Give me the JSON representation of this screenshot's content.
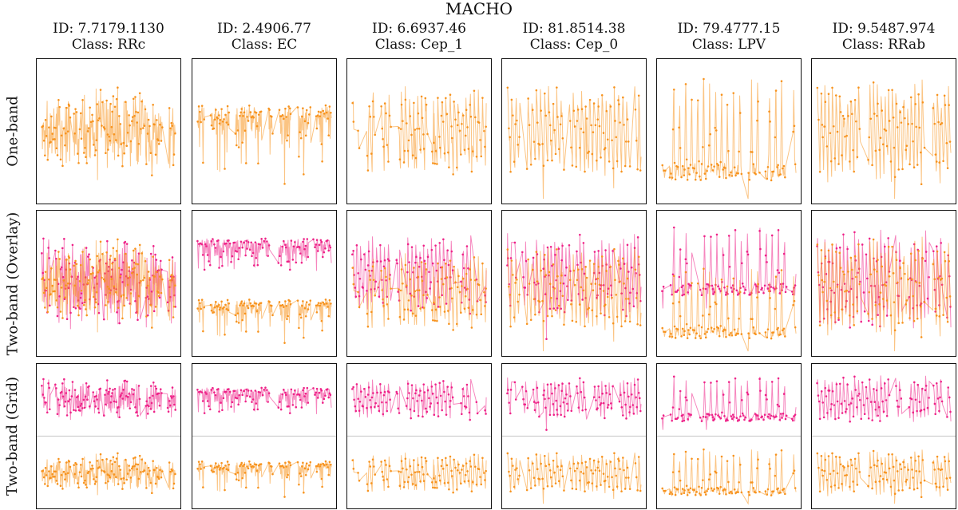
{
  "title": "MACHO",
  "colors": {
    "band1": "#f7931e",
    "band2": "#ee2288",
    "divider": "#cfcfcf"
  },
  "row_labels": [
    "One-band",
    "Two-band (Overlay)",
    "Two-band (Grid)"
  ],
  "columns": [
    {
      "id_text": "ID: 7.7179.1130",
      "class_text": "Class: RRc"
    },
    {
      "id_text": "ID: 2.4906.77",
      "class_text": "Class: EC"
    },
    {
      "id_text": "ID: 6.6937.46",
      "class_text": "Class: Cep_1"
    },
    {
      "id_text": "ID: 81.8514.38",
      "class_text": "Class: Cep_0"
    },
    {
      "id_text": "ID: 79.4777.15",
      "class_text": "Class: LPV"
    },
    {
      "id_text": "ID: 9.5487.974",
      "class_text": "Class: RRab"
    }
  ],
  "chart_data": {
    "type": "line",
    "title": "MACHO",
    "description_rows": [
      "One-band",
      "Two-band (Overlay)",
      "Two-band (Grid)"
    ],
    "series_names": [
      "band 1 (orange)",
      "band 2 (magenta)"
    ],
    "xlabel": "",
    "ylabel": "",
    "grid": false,
    "stars": [
      {
        "id": "7.7179.1130",
        "class": "RRc",
        "pattern": "noise",
        "amplitude": 0.85,
        "cycles": 40,
        "band2_offset": 0.0
      },
      {
        "id": "2.4906.77",
        "class": "EC",
        "pattern": "eclipse",
        "amplitude": 0.7,
        "cycles": 16,
        "band2_offset": 0.5
      },
      {
        "id": "6.6937.46",
        "class": "Cep_1",
        "pattern": "sawtooth",
        "amplitude": 0.75,
        "cycles": 10,
        "band2_offset": 0.15
      },
      {
        "id": "81.8514.38",
        "class": "Cep_0",
        "pattern": "sawtooth",
        "amplitude": 0.8,
        "cycles": 11,
        "band2_offset": 0.1
      },
      {
        "id": "79.4777.15",
        "class": "LPV",
        "pattern": "peaks",
        "amplitude": 0.9,
        "cycles": 7,
        "band2_offset": 0.35
      },
      {
        "id": "9.5487.974",
        "class": "RRab",
        "pattern": "sawtooth",
        "amplitude": 0.9,
        "cycles": 12,
        "band2_offset": 0.05
      }
    ]
  }
}
